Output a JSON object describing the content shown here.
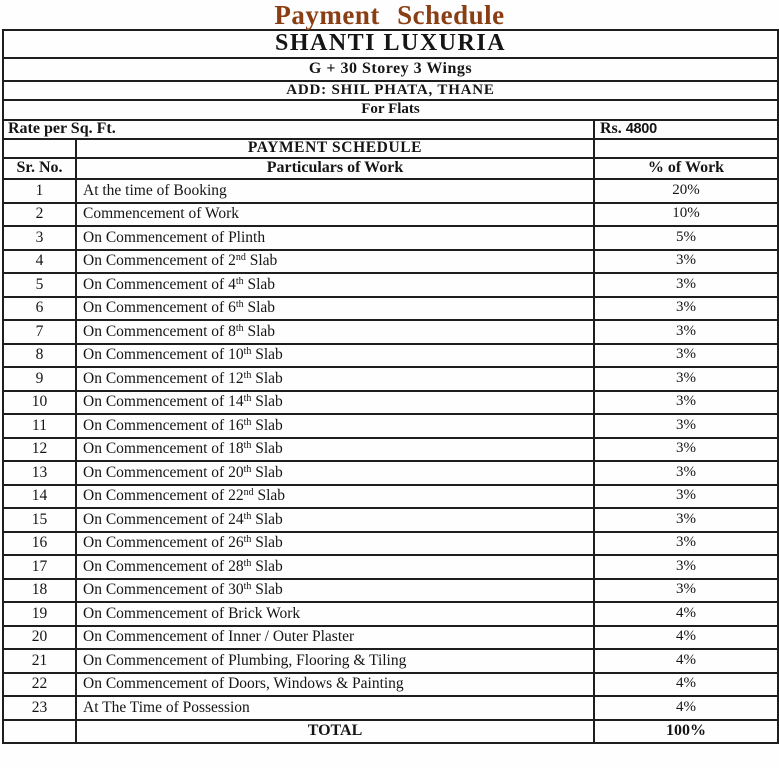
{
  "page": {
    "title": "Payment Schedule",
    "title_color": "#8a3e14",
    "text_color": "#151515",
    "border_color": "#1e1e1e"
  },
  "header": {
    "project_name": "SHANTI LUXURIA",
    "storey_info": "G + 30 Storey  3 Wings",
    "address": "ADD: SHIL PHATA, THANE",
    "for_label": "For Flats",
    "rate_label": "Rate per Sq. Ft.",
    "rate_currency": "Rs.",
    "rate_amount": "4800"
  },
  "table": {
    "section_title": "PAYMENT SCHEDULE",
    "columns": [
      "Sr. No.",
      "Particulars of Work",
      "% of Work"
    ],
    "rows": [
      {
        "sr": "1",
        "before": "At the time of Booking",
        "sup": "",
        "after": "",
        "pct": "20%"
      },
      {
        "sr": "2",
        "before": "Commencement of Work",
        "sup": "",
        "after": "",
        "pct": "10%"
      },
      {
        "sr": "3",
        "before": "On Commencement of Plinth",
        "sup": "",
        "after": "",
        "pct": "5%"
      },
      {
        "sr": "4",
        "before": "On Commencement of 2",
        "sup": "nd",
        "after": " Slab",
        "pct": "3%"
      },
      {
        "sr": "5",
        "before": "On Commencement of 4",
        "sup": "th",
        "after": " Slab",
        "pct": "3%"
      },
      {
        "sr": "6",
        "before": "On Commencement of 6",
        "sup": "th",
        "after": " Slab",
        "pct": "3%"
      },
      {
        "sr": "7",
        "before": "On Commencement of 8",
        "sup": "th",
        "after": " Slab",
        "pct": "3%"
      },
      {
        "sr": "8",
        "before": "On Commencement of 10",
        "sup": "th",
        "after": " Slab",
        "pct": "3%"
      },
      {
        "sr": "9",
        "before": "On Commencement of 12",
        "sup": "th",
        "after": " Slab",
        "pct": "3%"
      },
      {
        "sr": "10",
        "before": "On Commencement of 14",
        "sup": "th",
        "after": " Slab",
        "pct": "3%"
      },
      {
        "sr": "11",
        "before": "On Commencement of 16",
        "sup": "th",
        "after": " Slab",
        "pct": "3%"
      },
      {
        "sr": "12",
        "before": "On Commencement of 18",
        "sup": "th",
        "after": " Slab",
        "pct": "3%"
      },
      {
        "sr": "13",
        "before": "On Commencement of 20",
        "sup": "th",
        "after": " Slab",
        "pct": "3%"
      },
      {
        "sr": "14",
        "before": "On Commencement of 22",
        "sup": "nd",
        "after": " Slab",
        "pct": "3%"
      },
      {
        "sr": "15",
        "before": "On Commencement of 24",
        "sup": "th",
        "after": " Slab",
        "pct": "3%"
      },
      {
        "sr": "16",
        "before": "On Commencement of 26",
        "sup": "th",
        "after": " Slab",
        "pct": "3%"
      },
      {
        "sr": "17",
        "before": "On Commencement of 28",
        "sup": "th",
        "after": " Slab",
        "pct": "3%"
      },
      {
        "sr": "18",
        "before": "On Commencement of 30",
        "sup": "th",
        "after": " Slab",
        "pct": "3%"
      },
      {
        "sr": "19",
        "before": "On Commencement of Brick Work",
        "sup": "",
        "after": "",
        "pct": "4%"
      },
      {
        "sr": "20",
        "before": "On Commencement of Inner / Outer Plaster",
        "sup": "",
        "after": "",
        "pct": "4%"
      },
      {
        "sr": "21",
        "before": "On Commencement of Plumbing, Flooring & Tiling",
        "sup": "",
        "after": "",
        "pct": "4%"
      },
      {
        "sr": "22",
        "before": "On Commencement of Doors, Windows & Painting",
        "sup": "",
        "after": "",
        "pct": "4%"
      },
      {
        "sr": "23",
        "before": "At The Time of Possession",
        "sup": "",
        "after": "",
        "pct": "4%"
      }
    ],
    "total_label": "TOTAL",
    "total_value": "100%"
  }
}
